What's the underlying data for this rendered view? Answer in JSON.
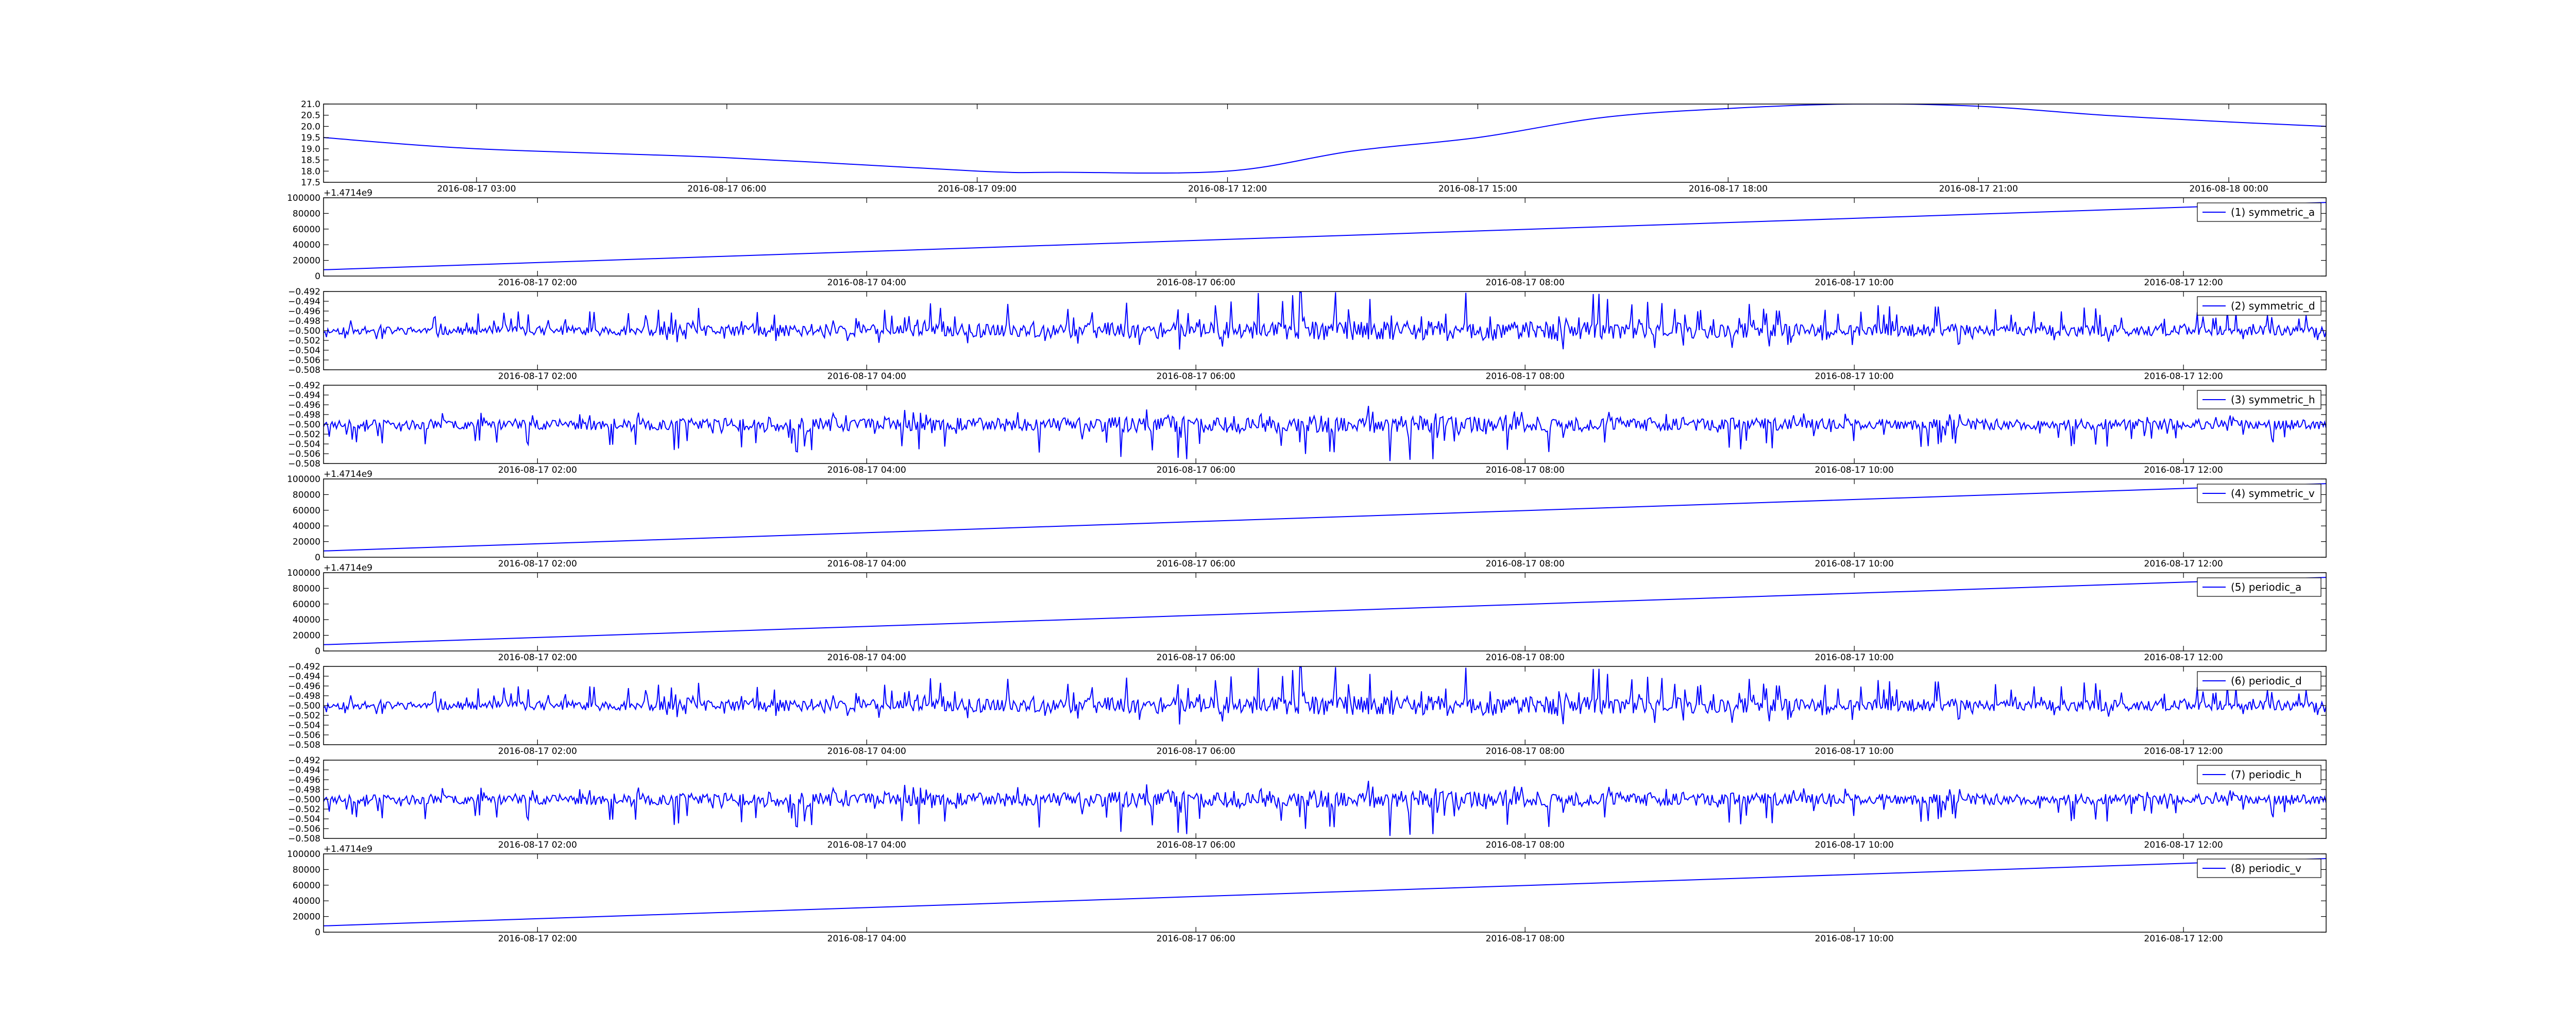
{
  "line_color": "#0000ff",
  "chart_data": [
    {
      "type": "line",
      "kind": "smooth",
      "offset_text": "",
      "legend": "",
      "ylim": [
        17.5,
        21.0
      ],
      "yticks": [
        "21.0",
        "20.5",
        "20.0",
        "19.5",
        "19.0",
        "18.5",
        "18.0",
        "17.5"
      ],
      "xlim": [
        "2016-08-17 01:10",
        "2016-08-18 01:10"
      ],
      "xticks": [
        "2016-08-17 03:00",
        "2016-08-17 06:00",
        "2016-08-17 09:00",
        "2016-08-17 12:00",
        "2016-08-17 15:00",
        "2016-08-17 18:00",
        "2016-08-17 21:00",
        "2016-08-18 00:00"
      ],
      "x": [
        "2016-08-17 01:10",
        "2016-08-17 03:00",
        "2016-08-17 06:00",
        "2016-08-17 09:00",
        "2016-08-17 10:00",
        "2016-08-17 12:00",
        "2016-08-17 13:30",
        "2016-08-17 15:00",
        "2016-08-17 16:30",
        "2016-08-17 18:00",
        "2016-08-17 19:30",
        "2016-08-17 21:00",
        "2016-08-17 22:30",
        "2016-08-18 00:00",
        "2016-08-18 01:10"
      ],
      "values": [
        19.5,
        19.0,
        18.6,
        18.0,
        17.95,
        18.0,
        18.9,
        19.5,
        20.4,
        20.8,
        21.0,
        20.9,
        20.5,
        20.2,
        20.0
      ]
    },
    {
      "type": "line",
      "kind": "ramp",
      "offset_text": "+1.4714e9",
      "legend": "(1) symmetric_a",
      "ylim": [
        0,
        100000
      ],
      "yticks": [
        "100000",
        "80000",
        "60000",
        "40000",
        "20000",
        "0"
      ],
      "xlim": [
        "2016-08-17 00:42",
        "2016-08-17 12:52"
      ],
      "xticks": [
        "2016-08-17 02:00",
        "2016-08-17 04:00",
        "2016-08-17 06:00",
        "2016-08-17 08:00",
        "2016-08-17 10:00",
        "2016-08-17 12:00"
      ],
      "x": [
        "2016-08-17 00:42",
        "2016-08-17 12:52"
      ],
      "values": [
        8000,
        94000
      ]
    },
    {
      "type": "line",
      "kind": "noise",
      "offset_text": "",
      "legend": "(2) symmetric_d",
      "ylim": [
        -0.508,
        -0.492
      ],
      "yticks": [
        "−0.492",
        "−0.494",
        "−0.496",
        "−0.498",
        "−0.500",
        "−0.502",
        "−0.504",
        "−0.506",
        "−0.508"
      ],
      "xlim": [
        "2016-08-17 00:42",
        "2016-08-17 12:52"
      ],
      "xticks": [
        "2016-08-17 02:00",
        "2016-08-17 04:00",
        "2016-08-17 06:00",
        "2016-08-17 08:00",
        "2016-08-17 10:00",
        "2016-08-17 12:00"
      ],
      "center": -0.5,
      "amplitude_profile": [
        0.0025,
        0.003,
        0.0035,
        0.004,
        0.0045,
        0.0055,
        0.0065,
        0.0065,
        0.0055,
        0.0045,
        0.004,
        0.0035,
        0.003
      ],
      "bias": 0.0004,
      "seed": 11
    },
    {
      "type": "line",
      "kind": "noise",
      "offset_text": "",
      "legend": "(3) symmetric_h",
      "ylim": [
        -0.508,
        -0.492
      ],
      "yticks": [
        "−0.492",
        "−0.494",
        "−0.496",
        "−0.498",
        "−0.500",
        "−0.502",
        "−0.504",
        "−0.506",
        "−0.508"
      ],
      "xlim": [
        "2016-08-17 00:42",
        "2016-08-17 12:52"
      ],
      "xticks": [
        "2016-08-17 02:00",
        "2016-08-17 04:00",
        "2016-08-17 06:00",
        "2016-08-17 08:00",
        "2016-08-17 10:00",
        "2016-08-17 12:00"
      ],
      "center": -0.5,
      "amplitude_profile": [
        0.003,
        0.0035,
        0.004,
        0.0045,
        0.0045,
        0.0055,
        0.006,
        0.0055,
        0.0045,
        0.004,
        0.0035,
        0.0035,
        0.003
      ],
      "bias": -0.0004,
      "seed": 23
    },
    {
      "type": "line",
      "kind": "ramp",
      "offset_text": "+1.4714e9",
      "legend": "(4) symmetric_v",
      "ylim": [
        0,
        100000
      ],
      "yticks": [
        "100000",
        "80000",
        "60000",
        "40000",
        "20000",
        "0"
      ],
      "xlim": [
        "2016-08-17 00:42",
        "2016-08-17 12:52"
      ],
      "xticks": [
        "2016-08-17 02:00",
        "2016-08-17 04:00",
        "2016-08-17 06:00",
        "2016-08-17 08:00",
        "2016-08-17 10:00",
        "2016-08-17 12:00"
      ],
      "x": [
        "2016-08-17 00:42",
        "2016-08-17 12:52"
      ],
      "values": [
        8000,
        94000
      ]
    },
    {
      "type": "line",
      "kind": "ramp",
      "offset_text": "+1.4714e9",
      "legend": "(5) periodic_a",
      "ylim": [
        0,
        100000
      ],
      "yticks": [
        "100000",
        "80000",
        "60000",
        "40000",
        "20000",
        "0"
      ],
      "xlim": [
        "2016-08-17 00:42",
        "2016-08-17 12:52"
      ],
      "xticks": [
        "2016-08-17 02:00",
        "2016-08-17 04:00",
        "2016-08-17 06:00",
        "2016-08-17 08:00",
        "2016-08-17 10:00",
        "2016-08-17 12:00"
      ],
      "x": [
        "2016-08-17 00:42",
        "2016-08-17 12:52"
      ],
      "values": [
        8000,
        94000
      ]
    },
    {
      "type": "line",
      "kind": "noise",
      "offset_text": "",
      "legend": "(6) periodic_d",
      "ylim": [
        -0.508,
        -0.492
      ],
      "yticks": [
        "−0.492",
        "−0.494",
        "−0.496",
        "−0.498",
        "−0.500",
        "−0.502",
        "−0.504",
        "−0.506",
        "−0.508"
      ],
      "xlim": [
        "2016-08-17 00:42",
        "2016-08-17 12:52"
      ],
      "xticks": [
        "2016-08-17 02:00",
        "2016-08-17 04:00",
        "2016-08-17 06:00",
        "2016-08-17 08:00",
        "2016-08-17 10:00",
        "2016-08-17 12:00"
      ],
      "center": -0.5,
      "amplitude_profile": [
        0.0025,
        0.003,
        0.0035,
        0.004,
        0.0045,
        0.0055,
        0.0065,
        0.0065,
        0.0055,
        0.0045,
        0.004,
        0.0035,
        0.003
      ],
      "bias": 0.0004,
      "seed": 11
    },
    {
      "type": "line",
      "kind": "noise",
      "offset_text": "",
      "legend": "(7) periodic_h",
      "ylim": [
        -0.508,
        -0.492
      ],
      "yticks": [
        "−0.492",
        "−0.494",
        "−0.496",
        "−0.498",
        "−0.500",
        "−0.502",
        "−0.504",
        "−0.506",
        "−0.508"
      ],
      "xlim": [
        "2016-08-17 00:42",
        "2016-08-17 12:52"
      ],
      "xticks": [
        "2016-08-17 02:00",
        "2016-08-17 04:00",
        "2016-08-17 06:00",
        "2016-08-17 08:00",
        "2016-08-17 10:00",
        "2016-08-17 12:00"
      ],
      "center": -0.5,
      "amplitude_profile": [
        0.003,
        0.0035,
        0.004,
        0.0045,
        0.0045,
        0.0055,
        0.006,
        0.0055,
        0.0045,
        0.004,
        0.0035,
        0.0035,
        0.003
      ],
      "bias": -0.0004,
      "seed": 23
    },
    {
      "type": "line",
      "kind": "ramp",
      "offset_text": "+1.4714e9",
      "legend": "(8) periodic_v",
      "ylim": [
        0,
        100000
      ],
      "yticks": [
        "100000",
        "80000",
        "60000",
        "40000",
        "20000",
        "0"
      ],
      "xlim": [
        "2016-08-17 00:42",
        "2016-08-17 12:52"
      ],
      "xticks": [
        "2016-08-17 02:00",
        "2016-08-17 04:00",
        "2016-08-17 06:00",
        "2016-08-17 08:00",
        "2016-08-17 10:00",
        "2016-08-17 12:00"
      ],
      "x": [
        "2016-08-17 00:42",
        "2016-08-17 12:52"
      ],
      "values": [
        8000,
        94000
      ]
    }
  ]
}
